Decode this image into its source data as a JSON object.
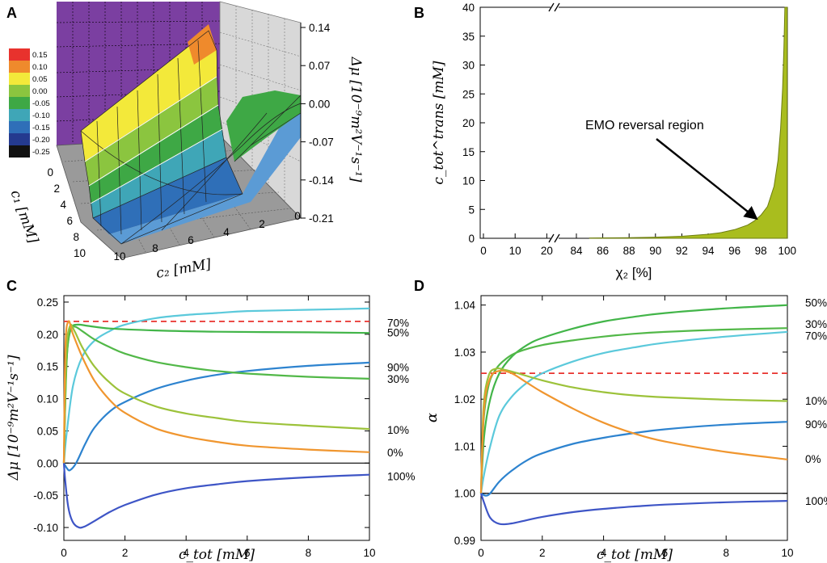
{
  "chart_data": [
    {
      "panel": "A",
      "type": "surface3d",
      "colorbar": {
        "labels": [
          "0.15",
          "0.10",
          "0.05",
          "0.00",
          "-0.05",
          "-0.10",
          "-0.15",
          "-0.20",
          "-0.25"
        ],
        "colors": [
          "#e8322d",
          "#ef8a2c",
          "#f3e93a",
          "#8bc53f",
          "#3ea845",
          "#3fa6b7",
          "#2f6fb8",
          "#243a8f",
          "#111111"
        ]
      },
      "z_axis": {
        "label": "Δμ [10⁻⁹m²V⁻¹s⁻¹]",
        "ticks": [
          "0.14",
          "0.07",
          "0.00",
          "-0.07",
          "-0.14",
          "-0.21"
        ]
      },
      "c1_axis": {
        "label": "c₁ [mM]",
        "ticks": [
          "0",
          "2",
          "4",
          "6",
          "8",
          "10"
        ]
      },
      "c2_axis": {
        "label": "c₂ [mM]",
        "ticks": [
          "10",
          "8",
          "6",
          "4",
          "2",
          "0"
        ]
      }
    },
    {
      "panel": "B",
      "type": "area",
      "ylabel": "c_tot^trans [mM]",
      "xlabel": "χ₂ [%]",
      "ylim": [
        0,
        40
      ],
      "yticks": [
        "0",
        "5",
        "10",
        "15",
        "20",
        "25",
        "30",
        "35",
        "40"
      ],
      "xticks_left": [
        "0",
        "10",
        "20"
      ],
      "xticks_right": [
        "84",
        "86",
        "88",
        "90",
        "92",
        "94",
        "96",
        "98",
        "100"
      ],
      "annotation": "EMO reversal region",
      "color": "#a9bd1e",
      "points": [
        [
          85,
          0.05
        ],
        [
          88,
          0.1
        ],
        [
          90,
          0.2
        ],
        [
          92,
          0.35
        ],
        [
          94,
          0.7
        ],
        [
          95,
          1.0
        ],
        [
          96,
          1.5
        ],
        [
          97,
          2.3
        ],
        [
          97.5,
          3.0
        ],
        [
          98,
          4.0
        ],
        [
          98.5,
          5.5
        ],
        [
          99,
          9.0
        ],
        [
          99.3,
          13.5
        ],
        [
          99.5,
          19.0
        ],
        [
          99.65,
          26.0
        ],
        [
          99.75,
          33.0
        ],
        [
          99.82,
          40.0
        ]
      ]
    },
    {
      "panel": "C",
      "type": "line",
      "ylabel": "Δμ [10⁻⁹m²V⁻¹s⁻¹]",
      "xlabel": "c_tot [mM]",
      "xlim": [
        0,
        10
      ],
      "ylim": [
        -0.12,
        0.26
      ],
      "xticks": [
        "0",
        "2",
        "4",
        "6",
        "8",
        "10"
      ],
      "yticks": [
        "-0.10",
        "-0.05",
        "0.00",
        "0.05",
        "0.10",
        "0.15",
        "0.20",
        "0.25"
      ],
      "reference_line": 0.22,
      "series": [
        {
          "name": "70%",
          "label": "70%",
          "color": "#5bc9db",
          "points": [
            [
              0,
              0
            ],
            [
              0.1,
              0.05
            ],
            [
              0.3,
              0.12
            ],
            [
              0.6,
              0.165
            ],
            [
              1,
              0.19
            ],
            [
              1.5,
              0.205
            ],
            [
              2,
              0.215
            ],
            [
              3,
              0.225
            ],
            [
              4,
              0.23
            ],
            [
              5,
              0.233
            ],
            [
              6,
              0.236
            ],
            [
              8,
              0.238
            ],
            [
              10,
              0.24
            ]
          ]
        },
        {
          "name": "50%",
          "label": "50%",
          "color": "#42b549",
          "points": [
            [
              0,
              0
            ],
            [
              0.05,
              0.1
            ],
            [
              0.12,
              0.18
            ],
            [
              0.25,
              0.21
            ],
            [
              0.45,
              0.215
            ],
            [
              0.8,
              0.213
            ],
            [
              1.5,
              0.209
            ],
            [
              3,
              0.206
            ],
            [
              5,
              0.204
            ],
            [
              8,
              0.203
            ],
            [
              10,
              0.202
            ]
          ]
        },
        {
          "name": "90%",
          "label": "90%",
          "color": "#2d83cf",
          "points": [
            [
              0,
              0
            ],
            [
              0.1,
              -0.008
            ],
            [
              0.2,
              -0.011
            ],
            [
              0.4,
              0.0
            ],
            [
              0.7,
              0.03
            ],
            [
              1,
              0.055
            ],
            [
              1.5,
              0.08
            ],
            [
              2,
              0.095
            ],
            [
              3,
              0.115
            ],
            [
              4,
              0.128
            ],
            [
              5,
              0.137
            ],
            [
              6,
              0.143
            ],
            [
              8,
              0.151
            ],
            [
              10,
              0.156
            ]
          ]
        },
        {
          "name": "30%",
          "label": "30%",
          "color": "#52b848",
          "points": [
            [
              0,
              0
            ],
            [
              0.08,
              0.15
            ],
            [
              0.2,
              0.205
            ],
            [
              0.35,
              0.212
            ],
            [
              0.6,
              0.205
            ],
            [
              1,
              0.192
            ],
            [
              1.5,
              0.18
            ],
            [
              2,
              0.17
            ],
            [
              3,
              0.157
            ],
            [
              4,
              0.149
            ],
            [
              5,
              0.143
            ],
            [
              6,
              0.139
            ],
            [
              8,
              0.134
            ],
            [
              10,
              0.131
            ]
          ]
        },
        {
          "name": "10%",
          "label": "10%",
          "color": "#9cc23a",
          "points": [
            [
              0,
              0
            ],
            [
              0.08,
              0.17
            ],
            [
              0.2,
              0.213
            ],
            [
              0.35,
              0.205
            ],
            [
              0.6,
              0.18
            ],
            [
              1,
              0.15
            ],
            [
              1.5,
              0.125
            ],
            [
              2,
              0.108
            ],
            [
              3,
              0.088
            ],
            [
              4,
              0.077
            ],
            [
              5,
              0.07
            ],
            [
              6,
              0.064
            ],
            [
              8,
              0.058
            ],
            [
              10,
              0.053
            ]
          ]
        },
        {
          "name": "0%",
          "label": "0%",
          "color": "#f0962f",
          "points": [
            [
              0,
              0
            ],
            [
              0.05,
              0.18
            ],
            [
              0.15,
              0.22
            ],
            [
              0.3,
              0.2
            ],
            [
              0.6,
              0.165
            ],
            [
              1,
              0.128
            ],
            [
              1.5,
              0.098
            ],
            [
              2,
              0.078
            ],
            [
              3,
              0.054
            ],
            [
              4,
              0.041
            ],
            [
              5,
              0.033
            ],
            [
              6,
              0.027
            ],
            [
              8,
              0.021
            ],
            [
              10,
              0.017
            ]
          ]
        },
        {
          "name": "100%",
          "label": "100%",
          "color": "#3e55c6",
          "points": [
            [
              0,
              0
            ],
            [
              0.05,
              -0.03
            ],
            [
              0.15,
              -0.07
            ],
            [
              0.3,
              -0.092
            ],
            [
              0.5,
              -0.1
            ],
            [
              0.7,
              -0.098
            ],
            [
              1,
              -0.09
            ],
            [
              1.5,
              -0.076
            ],
            [
              2,
              -0.065
            ],
            [
              3,
              -0.049
            ],
            [
              4,
              -0.039
            ],
            [
              5,
              -0.033
            ],
            [
              6,
              -0.028
            ],
            [
              8,
              -0.022
            ],
            [
              10,
              -0.018
            ]
          ]
        }
      ],
      "label_positions": [
        0.218,
        0.203,
        0.149,
        0.131,
        0.052,
        0.017,
        -0.02
      ]
    },
    {
      "panel": "D",
      "type": "line",
      "ylabel": "α",
      "xlabel": "c_tot [mM]",
      "xlim": [
        0,
        10
      ],
      "ylim": [
        0.99,
        1.042
      ],
      "xticks": [
        "0",
        "2",
        "4",
        "6",
        "8",
        "10"
      ],
      "yticks": [
        "0.99",
        "1.00",
        "1.01",
        "1.02",
        "1.03",
        "1.04"
      ],
      "reference_line": 1.0255,
      "series": [
        {
          "name": "50%",
          "label": "50%",
          "color": "#42b549",
          "points": [
            [
              0,
              1.0
            ],
            [
              0.1,
              1.012
            ],
            [
              0.3,
              1.02
            ],
            [
              0.6,
              1.0255
            ],
            [
              1,
              1.029
            ],
            [
              1.5,
              1.0315
            ],
            [
              2,
              1.033
            ],
            [
              3,
              1.035
            ],
            [
              4,
              1.0365
            ],
            [
              5,
              1.0375
            ],
            [
              6,
              1.0383
            ],
            [
              8,
              1.0393
            ],
            [
              10,
              1.04
            ]
          ]
        },
        {
          "name": "30%",
          "label": "30%",
          "color": "#52b848",
          "points": [
            [
              0,
              1.0
            ],
            [
              0.08,
              1.015
            ],
            [
              0.25,
              1.023
            ],
            [
              0.5,
              1.0265
            ],
            [
              0.8,
              1.0285
            ],
            [
              1.2,
              1.03
            ],
            [
              2,
              1.0315
            ],
            [
              3,
              1.0325
            ],
            [
              4,
              1.0333
            ],
            [
              5,
              1.0339
            ],
            [
              6,
              1.0343
            ],
            [
              8,
              1.0348
            ],
            [
              10,
              1.0351
            ]
          ]
        },
        {
          "name": "70%",
          "label": "70%",
          "color": "#5bc9db",
          "points": [
            [
              0,
              1.0
            ],
            [
              0.1,
              1.004
            ],
            [
              0.3,
              1.01
            ],
            [
              0.6,
              1.0165
            ],
            [
              1,
              1.0205
            ],
            [
              1.5,
              1.0235
            ],
            [
              2,
              1.0255
            ],
            [
              3,
              1.028
            ],
            [
              4,
              1.0298
            ],
            [
              5,
              1.031
            ],
            [
              6,
              1.032
            ],
            [
              8,
              1.0333
            ],
            [
              10,
              1.0343
            ]
          ]
        },
        {
          "name": "10%",
          "label": "10%",
          "color": "#9cc23a",
          "points": [
            [
              0,
              1.0
            ],
            [
              0.08,
              1.018
            ],
            [
              0.25,
              1.025
            ],
            [
              0.5,
              1.0265
            ],
            [
              0.8,
              1.0262
            ],
            [
              1.2,
              1.0255
            ],
            [
              2,
              1.024
            ],
            [
              3,
              1.0225
            ],
            [
              4,
              1.0215
            ],
            [
              5,
              1.0208
            ],
            [
              6,
              1.0204
            ],
            [
              8,
              1.0199
            ],
            [
              10,
              1.0196
            ]
          ]
        },
        {
          "name": "90%",
          "label": "90%",
          "color": "#2d83cf",
          "points": [
            [
              0,
              1.0
            ],
            [
              0.15,
              0.9995
            ],
            [
              0.3,
              1.0
            ],
            [
              0.6,
              1.0025
            ],
            [
              1,
              1.0048
            ],
            [
              1.5,
              1.007
            ],
            [
              2,
              1.0085
            ],
            [
              3,
              1.0105
            ],
            [
              4,
              1.0118
            ],
            [
              5,
              1.0128
            ],
            [
              6,
              1.0136
            ],
            [
              8,
              1.0146
            ],
            [
              10,
              1.0152
            ]
          ]
        },
        {
          "name": "0%",
          "label": "0%",
          "color": "#f0962f",
          "points": [
            [
              0,
              1.0
            ],
            [
              0.1,
              1.018
            ],
            [
              0.3,
              1.0245
            ],
            [
              0.6,
              1.026
            ],
            [
              1,
              1.0255
            ],
            [
              1.5,
              1.0235
            ],
            [
              2,
              1.0215
            ],
            [
              3,
              1.018
            ],
            [
              4,
              1.015
            ],
            [
              5,
              1.0127
            ],
            [
              6,
              1.011
            ],
            [
              8,
              1.0088
            ],
            [
              10,
              1.0072
            ]
          ]
        },
        {
          "name": "100%",
          "label": "100%",
          "color": "#3e55c6",
          "points": [
            [
              0,
              1.0
            ],
            [
              0.1,
              0.998
            ],
            [
              0.3,
              0.9948
            ],
            [
              0.6,
              0.9935
            ],
            [
              1,
              0.9936
            ],
            [
              1.5,
              0.9943
            ],
            [
              2,
              0.995
            ],
            [
              3,
              0.996
            ],
            [
              4,
              0.9967
            ],
            [
              5,
              0.9972
            ],
            [
              6,
              0.9976
            ],
            [
              8,
              0.9981
            ],
            [
              10,
              0.9984
            ]
          ]
        }
      ],
      "label_positions": [
        1.0405,
        1.036,
        1.0335,
        1.0197,
        1.0147,
        1.0073,
        0.9984
      ]
    }
  ],
  "panels": {
    "a": "A",
    "b": "B",
    "c": "C",
    "d": "D"
  }
}
